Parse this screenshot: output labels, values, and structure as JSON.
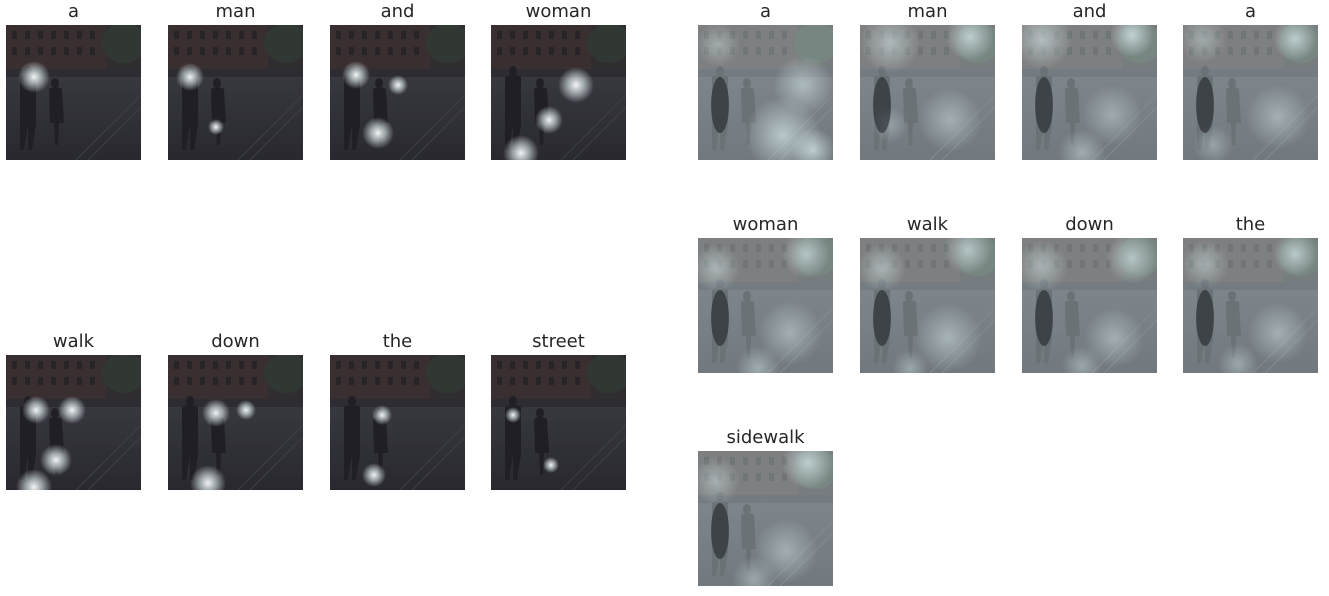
{
  "left_panel": {
    "words": [
      "a",
      "man",
      "and",
      "woman",
      "walk",
      "down",
      "the",
      "street"
    ],
    "attention_style": "soft-spotlight"
  },
  "right_panel": {
    "words": [
      "a",
      "man",
      "and",
      "a",
      "woman",
      "walk",
      "down",
      "the",
      "sidewalk"
    ],
    "attention_style": "hard-blotch"
  },
  "colors": {
    "background": "#ffffff",
    "label_text": "#262626",
    "left_tint": "#23232b",
    "right_tint": "#a9b8bc"
  }
}
